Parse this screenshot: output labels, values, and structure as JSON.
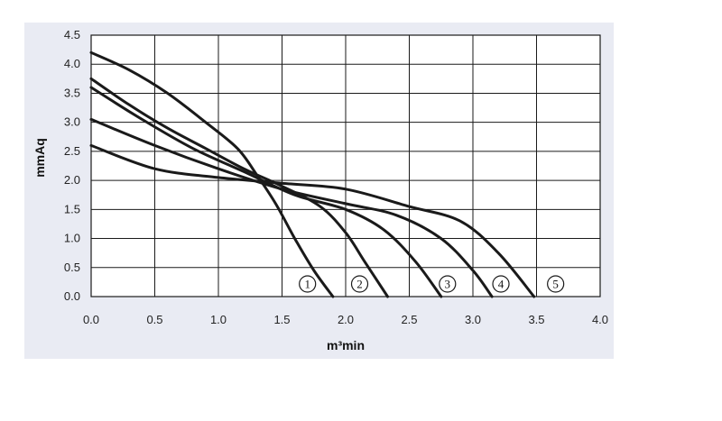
{
  "chart_data": {
    "type": "line",
    "title": "",
    "xlabel": "m³min",
    "ylabel": "mmAq",
    "xlim": [
      0,
      4.0
    ],
    "ylim": [
      0,
      4.5
    ],
    "x_ticks": [
      "0.0",
      "0.5",
      "1.0",
      "1.5",
      "2.0",
      "2.5",
      "3.0",
      "3.5",
      "4.0"
    ],
    "y_ticks": [
      "0.0",
      "0.5",
      "1.0",
      "1.5",
      "2.0",
      "2.5",
      "3.0",
      "3.5",
      "4.0",
      "4.5"
    ],
    "grid": true,
    "colors": {
      "panel": "#e9ebf3",
      "plot": "#ffffff",
      "grid": "#1a1a1a",
      "curve": "#1a1a1a"
    },
    "series": [
      {
        "marker": "1",
        "marker_x": 1.7,
        "points": [
          [
            0,
            4.2
          ],
          [
            0.3,
            3.9
          ],
          [
            0.6,
            3.5
          ],
          [
            0.9,
            3.0
          ],
          [
            1.15,
            2.55
          ],
          [
            1.3,
            2.1
          ],
          [
            1.45,
            1.6
          ],
          [
            1.6,
            1.0
          ],
          [
            1.75,
            0.45
          ],
          [
            1.9,
            0.0
          ]
        ]
      },
      {
        "marker": "2",
        "marker_x": 2.11,
        "points": [
          [
            0,
            3.75
          ],
          [
            0.3,
            3.3
          ],
          [
            0.6,
            2.9
          ],
          [
            0.9,
            2.55
          ],
          [
            1.2,
            2.2
          ],
          [
            1.5,
            1.9
          ],
          [
            1.8,
            1.55
          ],
          [
            2.0,
            1.1
          ],
          [
            2.15,
            0.6
          ],
          [
            2.33,
            0.0
          ]
        ]
      },
      {
        "marker": "3",
        "marker_x": 2.8,
        "points": [
          [
            0,
            3.6
          ],
          [
            0.4,
            3.05
          ],
          [
            0.8,
            2.55
          ],
          [
            1.2,
            2.15
          ],
          [
            1.6,
            1.75
          ],
          [
            2.0,
            1.5
          ],
          [
            2.3,
            1.15
          ],
          [
            2.55,
            0.6
          ],
          [
            2.75,
            0.0
          ]
        ]
      },
      {
        "marker": "4",
        "marker_x": 3.22,
        "points": [
          [
            0,
            3.05
          ],
          [
            0.5,
            2.6
          ],
          [
            1.0,
            2.2
          ],
          [
            1.5,
            1.85
          ],
          [
            2.0,
            1.6
          ],
          [
            2.4,
            1.4
          ],
          [
            2.75,
            1.0
          ],
          [
            3.0,
            0.45
          ],
          [
            3.15,
            0.0
          ]
        ]
      },
      {
        "marker": "5",
        "marker_x": 3.65,
        "points": [
          [
            0,
            2.6
          ],
          [
            0.5,
            2.2
          ],
          [
            1.0,
            2.05
          ],
          [
            1.5,
            1.95
          ],
          [
            2.0,
            1.85
          ],
          [
            2.5,
            1.55
          ],
          [
            2.9,
            1.3
          ],
          [
            3.2,
            0.75
          ],
          [
            3.48,
            0.0
          ]
        ]
      }
    ]
  }
}
